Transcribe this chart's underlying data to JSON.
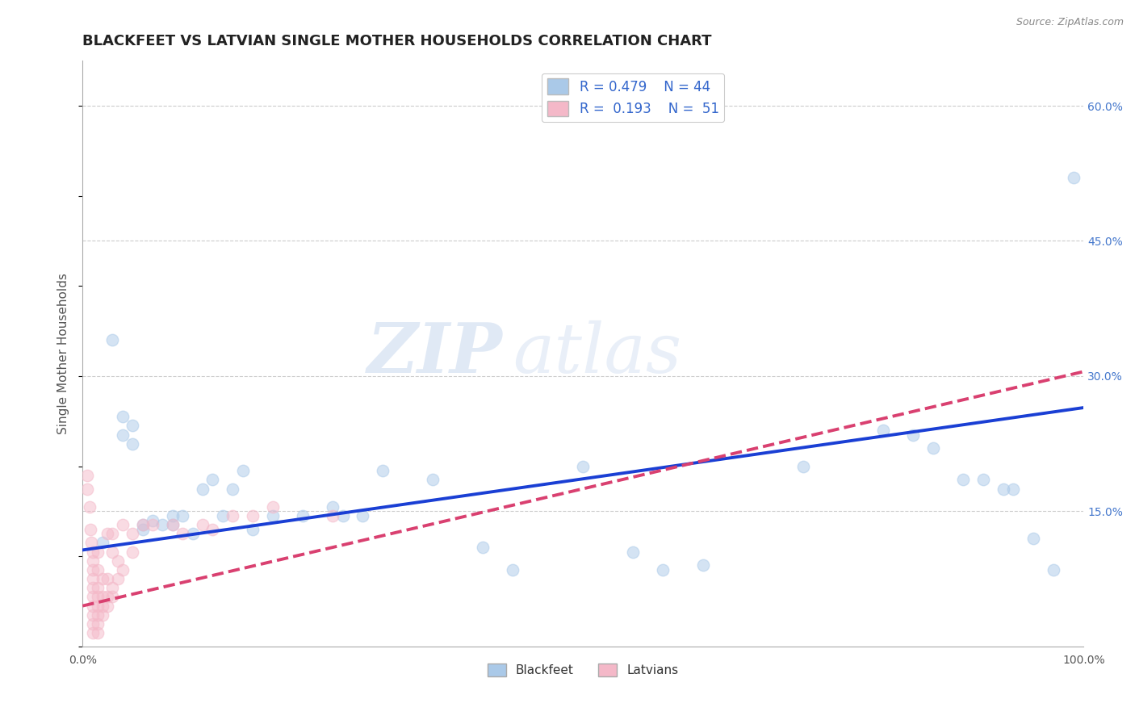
{
  "title": "BLACKFEET VS LATVIAN SINGLE MOTHER HOUSEHOLDS CORRELATION CHART",
  "source": "Source: ZipAtlas.com",
  "ylabel": "Single Mother Households",
  "xlim": [
    0,
    1.0
  ],
  "ylim": [
    0,
    0.65
  ],
  "ytick_labels_right": [
    "60.0%",
    "45.0%",
    "30.0%",
    "15.0%"
  ],
  "ytick_values_right": [
    0.6,
    0.45,
    0.3,
    0.15
  ],
  "grid_color": "#cccccc",
  "background_color": "#ffffff",
  "watermark_zip": "ZIP",
  "watermark_atlas": "atlas",
  "legend_label1": "Blackfeet",
  "legend_label2": "Latvians",
  "blue_color": "#aac9e8",
  "pink_color": "#f4b8c8",
  "blue_line_color": "#1a3fd4",
  "pink_line_color": "#d94070",
  "blue_scatter": [
    [
      0.02,
      0.115
    ],
    [
      0.03,
      0.34
    ],
    [
      0.04,
      0.255
    ],
    [
      0.04,
      0.235
    ],
    [
      0.05,
      0.245
    ],
    [
      0.05,
      0.225
    ],
    [
      0.06,
      0.135
    ],
    [
      0.06,
      0.13
    ],
    [
      0.07,
      0.14
    ],
    [
      0.08,
      0.135
    ],
    [
      0.09,
      0.135
    ],
    [
      0.09,
      0.145
    ],
    [
      0.1,
      0.145
    ],
    [
      0.11,
      0.125
    ],
    [
      0.12,
      0.175
    ],
    [
      0.13,
      0.185
    ],
    [
      0.14,
      0.145
    ],
    [
      0.15,
      0.175
    ],
    [
      0.16,
      0.195
    ],
    [
      0.17,
      0.13
    ],
    [
      0.19,
      0.145
    ],
    [
      0.22,
      0.145
    ],
    [
      0.25,
      0.155
    ],
    [
      0.26,
      0.145
    ],
    [
      0.28,
      0.145
    ],
    [
      0.3,
      0.195
    ],
    [
      0.35,
      0.185
    ],
    [
      0.4,
      0.11
    ],
    [
      0.43,
      0.085
    ],
    [
      0.5,
      0.2
    ],
    [
      0.55,
      0.105
    ],
    [
      0.58,
      0.085
    ],
    [
      0.62,
      0.09
    ],
    [
      0.72,
      0.2
    ],
    [
      0.8,
      0.24
    ],
    [
      0.83,
      0.235
    ],
    [
      0.85,
      0.22
    ],
    [
      0.88,
      0.185
    ],
    [
      0.9,
      0.185
    ],
    [
      0.92,
      0.175
    ],
    [
      0.93,
      0.175
    ],
    [
      0.95,
      0.12
    ],
    [
      0.97,
      0.085
    ],
    [
      0.99,
      0.52
    ]
  ],
  "pink_scatter": [
    [
      0.005,
      0.19
    ],
    [
      0.005,
      0.175
    ],
    [
      0.007,
      0.155
    ],
    [
      0.008,
      0.13
    ],
    [
      0.009,
      0.115
    ],
    [
      0.01,
      0.105
    ],
    [
      0.01,
      0.095
    ],
    [
      0.01,
      0.085
    ],
    [
      0.01,
      0.075
    ],
    [
      0.01,
      0.065
    ],
    [
      0.01,
      0.055
    ],
    [
      0.01,
      0.045
    ],
    [
      0.01,
      0.035
    ],
    [
      0.01,
      0.025
    ],
    [
      0.01,
      0.015
    ],
    [
      0.015,
      0.105
    ],
    [
      0.015,
      0.085
    ],
    [
      0.015,
      0.065
    ],
    [
      0.015,
      0.055
    ],
    [
      0.015,
      0.045
    ],
    [
      0.015,
      0.035
    ],
    [
      0.015,
      0.025
    ],
    [
      0.015,
      0.015
    ],
    [
      0.02,
      0.075
    ],
    [
      0.02,
      0.055
    ],
    [
      0.02,
      0.045
    ],
    [
      0.02,
      0.035
    ],
    [
      0.025,
      0.125
    ],
    [
      0.025,
      0.075
    ],
    [
      0.025,
      0.055
    ],
    [
      0.025,
      0.045
    ],
    [
      0.03,
      0.125
    ],
    [
      0.03,
      0.105
    ],
    [
      0.03,
      0.065
    ],
    [
      0.03,
      0.055
    ],
    [
      0.035,
      0.095
    ],
    [
      0.035,
      0.075
    ],
    [
      0.04,
      0.135
    ],
    [
      0.04,
      0.085
    ],
    [
      0.05,
      0.125
    ],
    [
      0.05,
      0.105
    ],
    [
      0.06,
      0.135
    ],
    [
      0.07,
      0.135
    ],
    [
      0.09,
      0.135
    ],
    [
      0.1,
      0.125
    ],
    [
      0.12,
      0.135
    ],
    [
      0.13,
      0.13
    ],
    [
      0.15,
      0.145
    ],
    [
      0.17,
      0.145
    ],
    [
      0.19,
      0.155
    ],
    [
      0.25,
      0.145
    ]
  ],
  "blue_line": [
    [
      0.0,
      0.107
    ],
    [
      1.0,
      0.265
    ]
  ],
  "pink_line": [
    [
      0.0,
      0.045
    ],
    [
      1.0,
      0.305
    ]
  ],
  "title_fontsize": 13,
  "axis_label_fontsize": 11,
  "tick_fontsize": 10,
  "scatter_size": 110,
  "scatter_alpha": 0.5,
  "line_width": 2.8
}
